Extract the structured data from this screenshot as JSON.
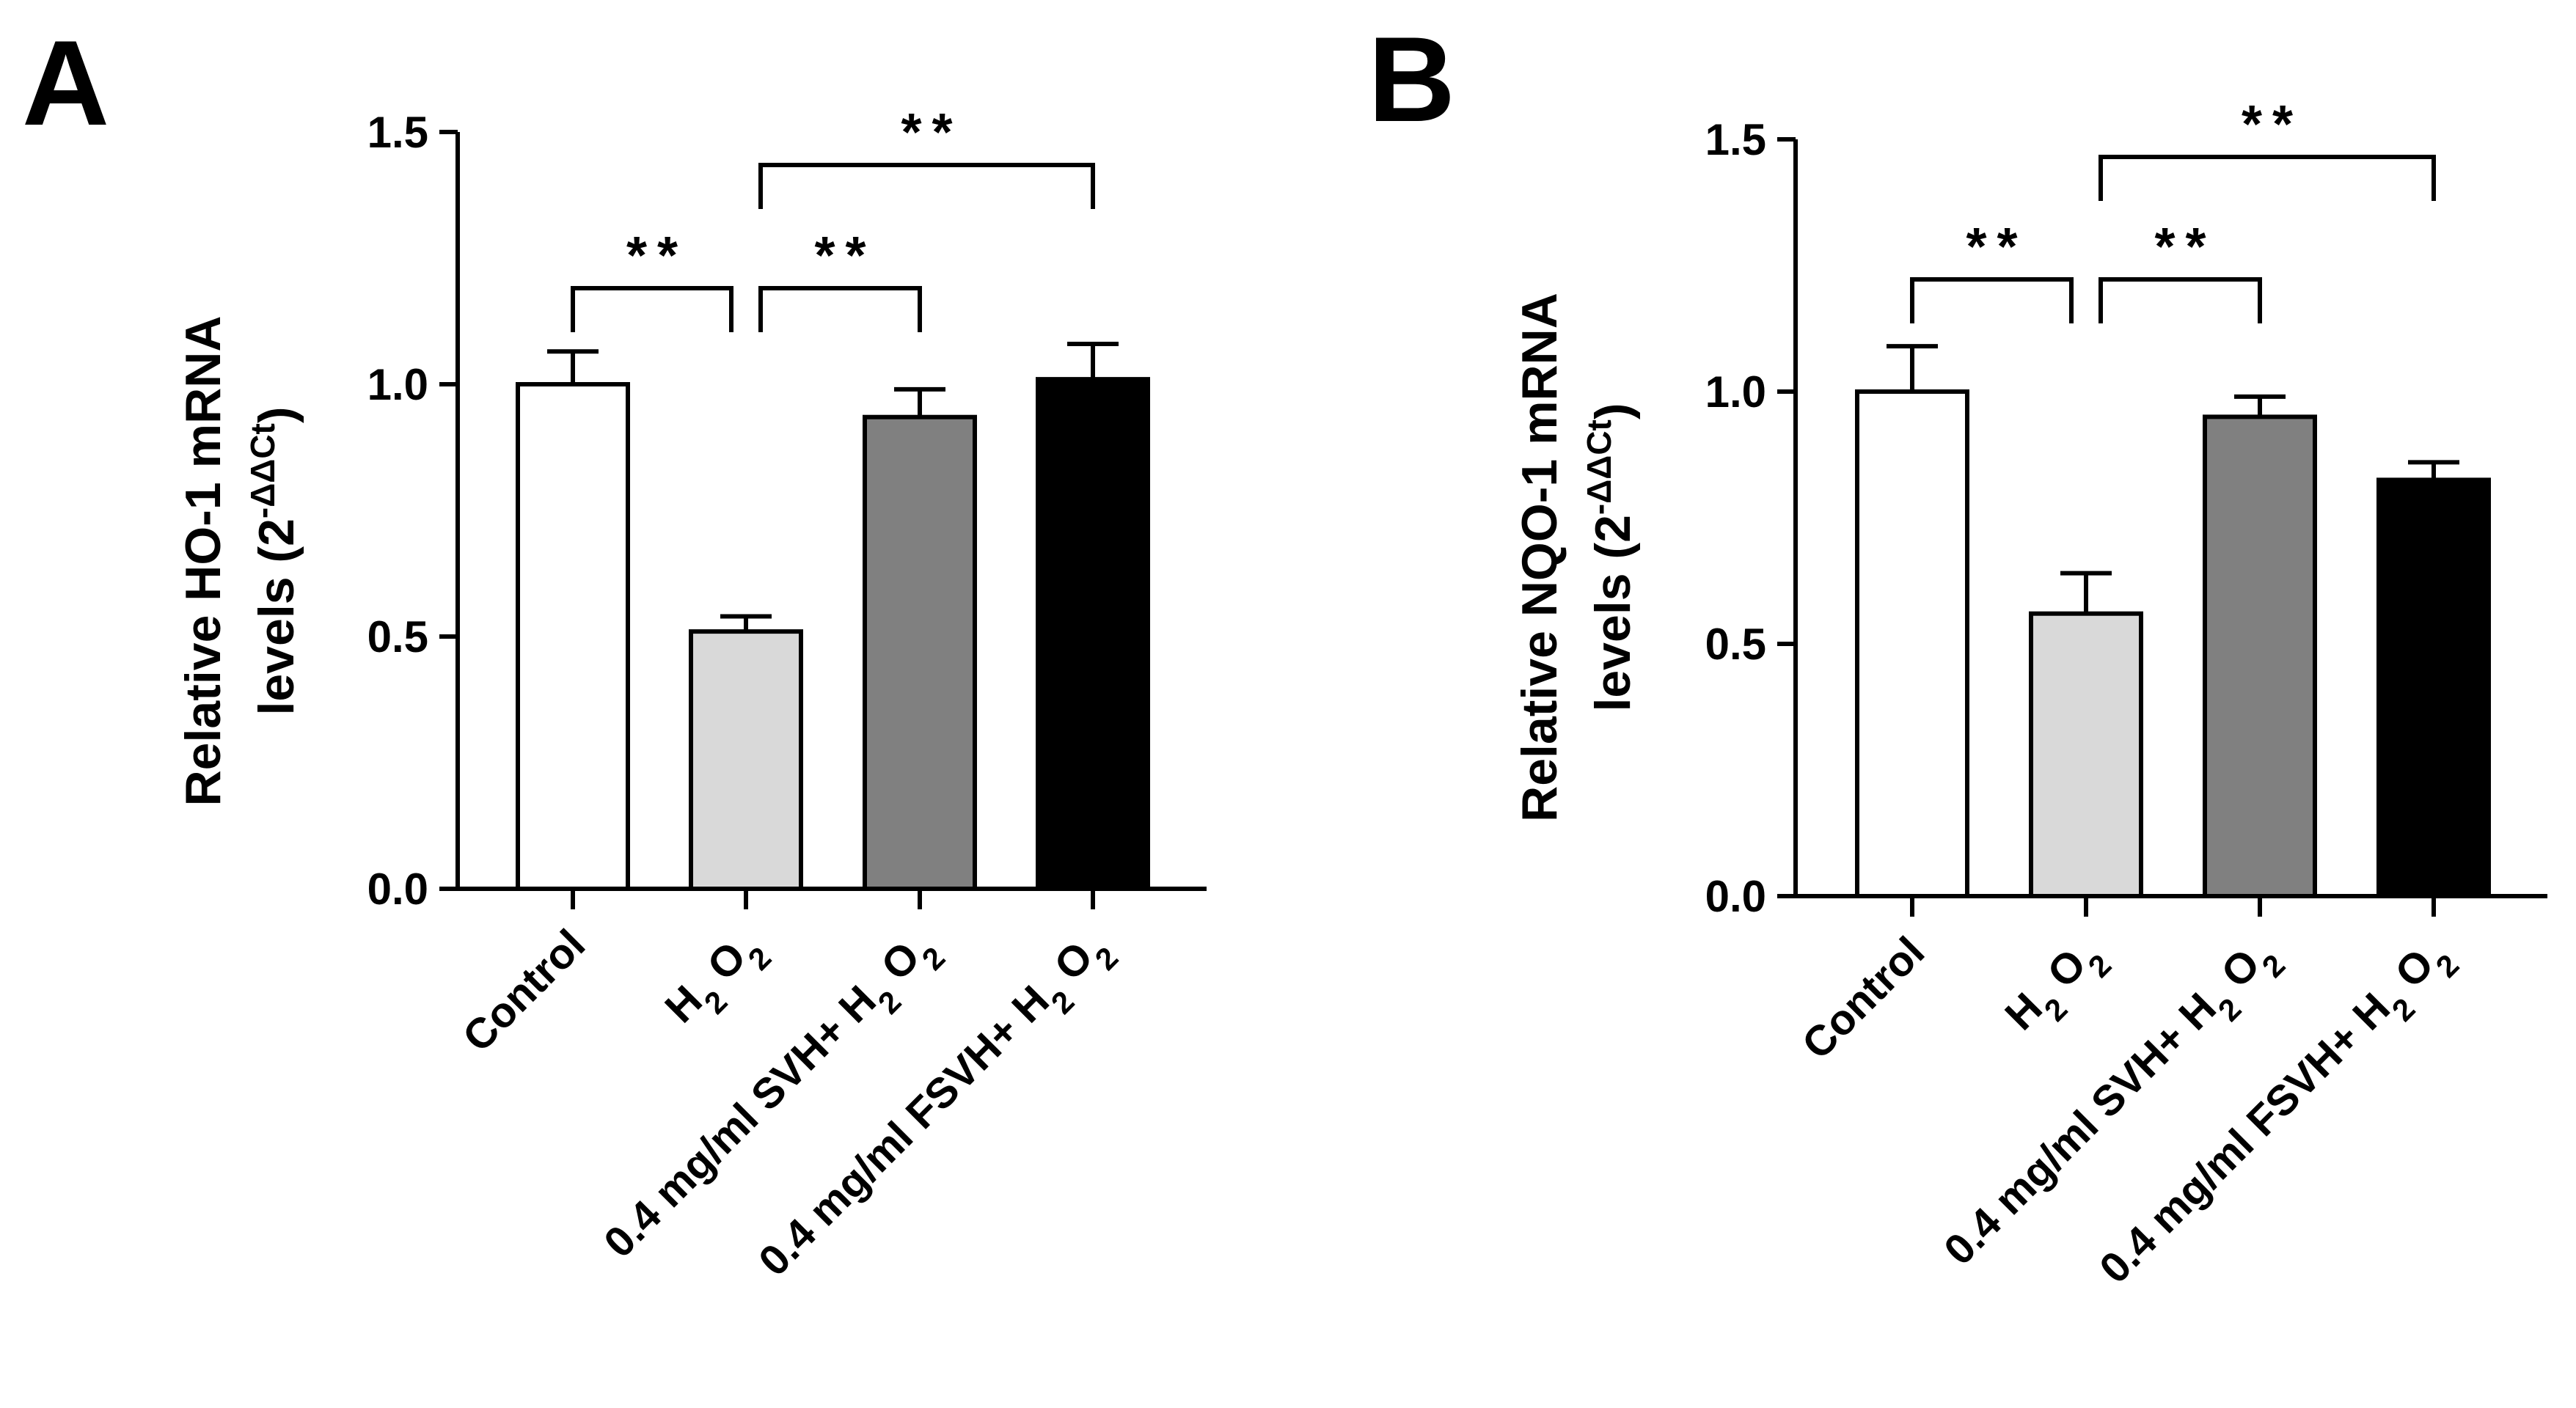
{
  "chart_data": [
    {
      "type": "bar",
      "panel_label": "A",
      "ylabel_line1": "Relative HO-1 mRNA",
      "ylabel_line2_prefix": "levels (2",
      "ylabel_superscript": "-ΔΔCt",
      "ylabel_line2_suffix": ")",
      "ylim": [
        0,
        1.5
      ],
      "yticks": [
        "0.0",
        "0.5",
        "1.0",
        "1.5"
      ],
      "yticks_values": [
        0,
        0.5,
        1.0,
        1.5
      ],
      "categories": [
        "Control",
        "H2O2",
        "0.4 mg/ml SVH+ H2O2",
        "0.4 mg/ml FSVH+ H2O2"
      ],
      "category_parts": [
        {
          "prefix": "Control",
          "formula": false
        },
        {
          "prefix": "",
          "formula": true
        },
        {
          "prefix": "0.4 mg/ml SVH+ ",
          "formula": true
        },
        {
          "prefix": "0.4 mg/ml FSVH+ ",
          "formula": true
        }
      ],
      "values": [
        1.0,
        0.51,
        0.935,
        1.01
      ],
      "errors": [
        0.065,
        0.03,
        0.055,
        0.07
      ],
      "bar_colors": [
        "#ffffff",
        "#d9d9d9",
        "#808080",
        "#000000"
      ],
      "significance": [
        {
          "from": 0,
          "to": 1,
          "label": "**"
        },
        {
          "from": 1,
          "to": 2,
          "label": "**"
        },
        {
          "from": 1,
          "to": 3,
          "label": "**"
        }
      ]
    },
    {
      "type": "bar",
      "panel_label": "B",
      "ylabel_line1": "Relative NQO-1 mRNA",
      "ylabel_line2_prefix": "levels (2",
      "ylabel_superscript": "-ΔΔCt",
      "ylabel_line2_suffix": ")",
      "ylim": [
        0,
        1.5
      ],
      "yticks": [
        "0.0",
        "0.5",
        "1.0",
        "1.5"
      ],
      "yticks_values": [
        0,
        0.5,
        1.0,
        1.5
      ],
      "categories": [
        "Control",
        "H2O2",
        "0.4 mg/ml SVH+ H2O2",
        "0.4 mg/ml FSVH+ H2O2"
      ],
      "category_parts": [
        {
          "prefix": "Control",
          "formula": false
        },
        {
          "prefix": "",
          "formula": true
        },
        {
          "prefix": "0.4 mg/ml SVH+ ",
          "formula": true
        },
        {
          "prefix": "0.4 mg/ml FSVH+ ",
          "formula": true
        }
      ],
      "values": [
        1.0,
        0.56,
        0.95,
        0.825
      ],
      "errors": [
        0.09,
        0.08,
        0.04,
        0.035
      ],
      "bar_colors": [
        "#ffffff",
        "#d9d9d9",
        "#808080",
        "#000000"
      ],
      "significance": [
        {
          "from": 0,
          "to": 1,
          "label": "**"
        },
        {
          "from": 1,
          "to": 2,
          "label": "**"
        },
        {
          "from": 1,
          "to": 3,
          "label": "**"
        }
      ]
    }
  ],
  "formula": {
    "h": "H",
    "sub": "2",
    "o": "O",
    "sub2": "2"
  }
}
